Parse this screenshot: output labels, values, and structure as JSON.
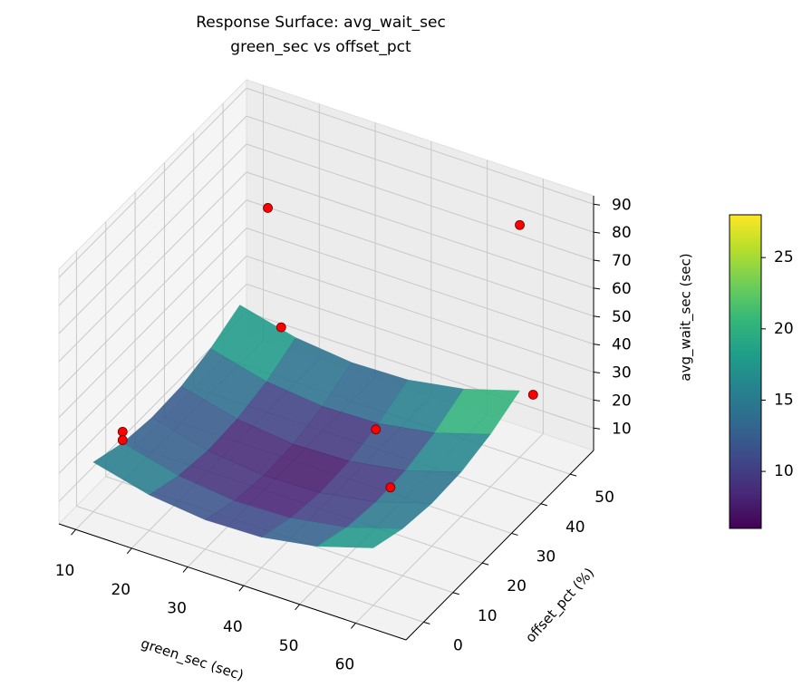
{
  "chart_data": {
    "type": "surface3d",
    "title": "Response Surface: avg_wait_sec",
    "subtitle": "green_sec vs offset_pct",
    "x_label": "green_sec (sec)",
    "y_label": "offset_pct (%)",
    "z_label": "avg_wait_sec (sec)",
    "xlim": [
      7,
      69
    ],
    "xticks": [
      10,
      20,
      30,
      40,
      50,
      60
    ],
    "ylim": [
      -6,
      58
    ],
    "yticks": [
      0,
      10,
      20,
      30,
      40,
      50
    ],
    "zlim": [
      2,
      93
    ],
    "zticks": [
      10,
      20,
      30,
      40,
      50,
      60,
      70,
      80,
      90
    ],
    "grid": true,
    "colormap": [
      "#440154",
      "#482878",
      "#3e4989",
      "#31688e",
      "#26828e",
      "#1f9e89",
      "#35b779",
      "#6ece58",
      "#b5de2b",
      "#fde725"
    ],
    "clim": [
      6,
      28
    ],
    "colorbar_ticks": [
      10,
      15,
      20,
      25
    ],
    "surface": {
      "x": [
        10,
        20,
        30,
        40,
        50,
        60
      ],
      "y": [
        0,
        10,
        20,
        30,
        40,
        50
      ],
      "z": [
        [
          19.7,
          14.7,
          12.5,
          13.0,
          16.4,
          22.5
        ],
        [
          16.0,
          11.0,
          8.7,
          9.3,
          12.6,
          18.8
        ],
        [
          14.5,
          9.4,
          7.2,
          7.7,
          11.1,
          17.3
        ],
        [
          15.1,
          10.1,
          7.8,
          8.4,
          11.7,
          17.9
        ],
        [
          18.0,
          12.9,
          10.7,
          11.3,
          14.6,
          20.8
        ],
        [
          23.0,
          18.0,
          15.8,
          16.3,
          19.7,
          25.8
        ]
      ]
    },
    "points": {
      "color": "#ff0000",
      "x": [
        15,
        60,
        10,
        10,
        50,
        20,
        50,
        65
      ],
      "y": [
        50,
        50,
        10,
        10,
        20,
        45,
        25,
        45
      ],
      "z": [
        61,
        85,
        20,
        17,
        37,
        27,
        11,
        33
      ]
    }
  }
}
